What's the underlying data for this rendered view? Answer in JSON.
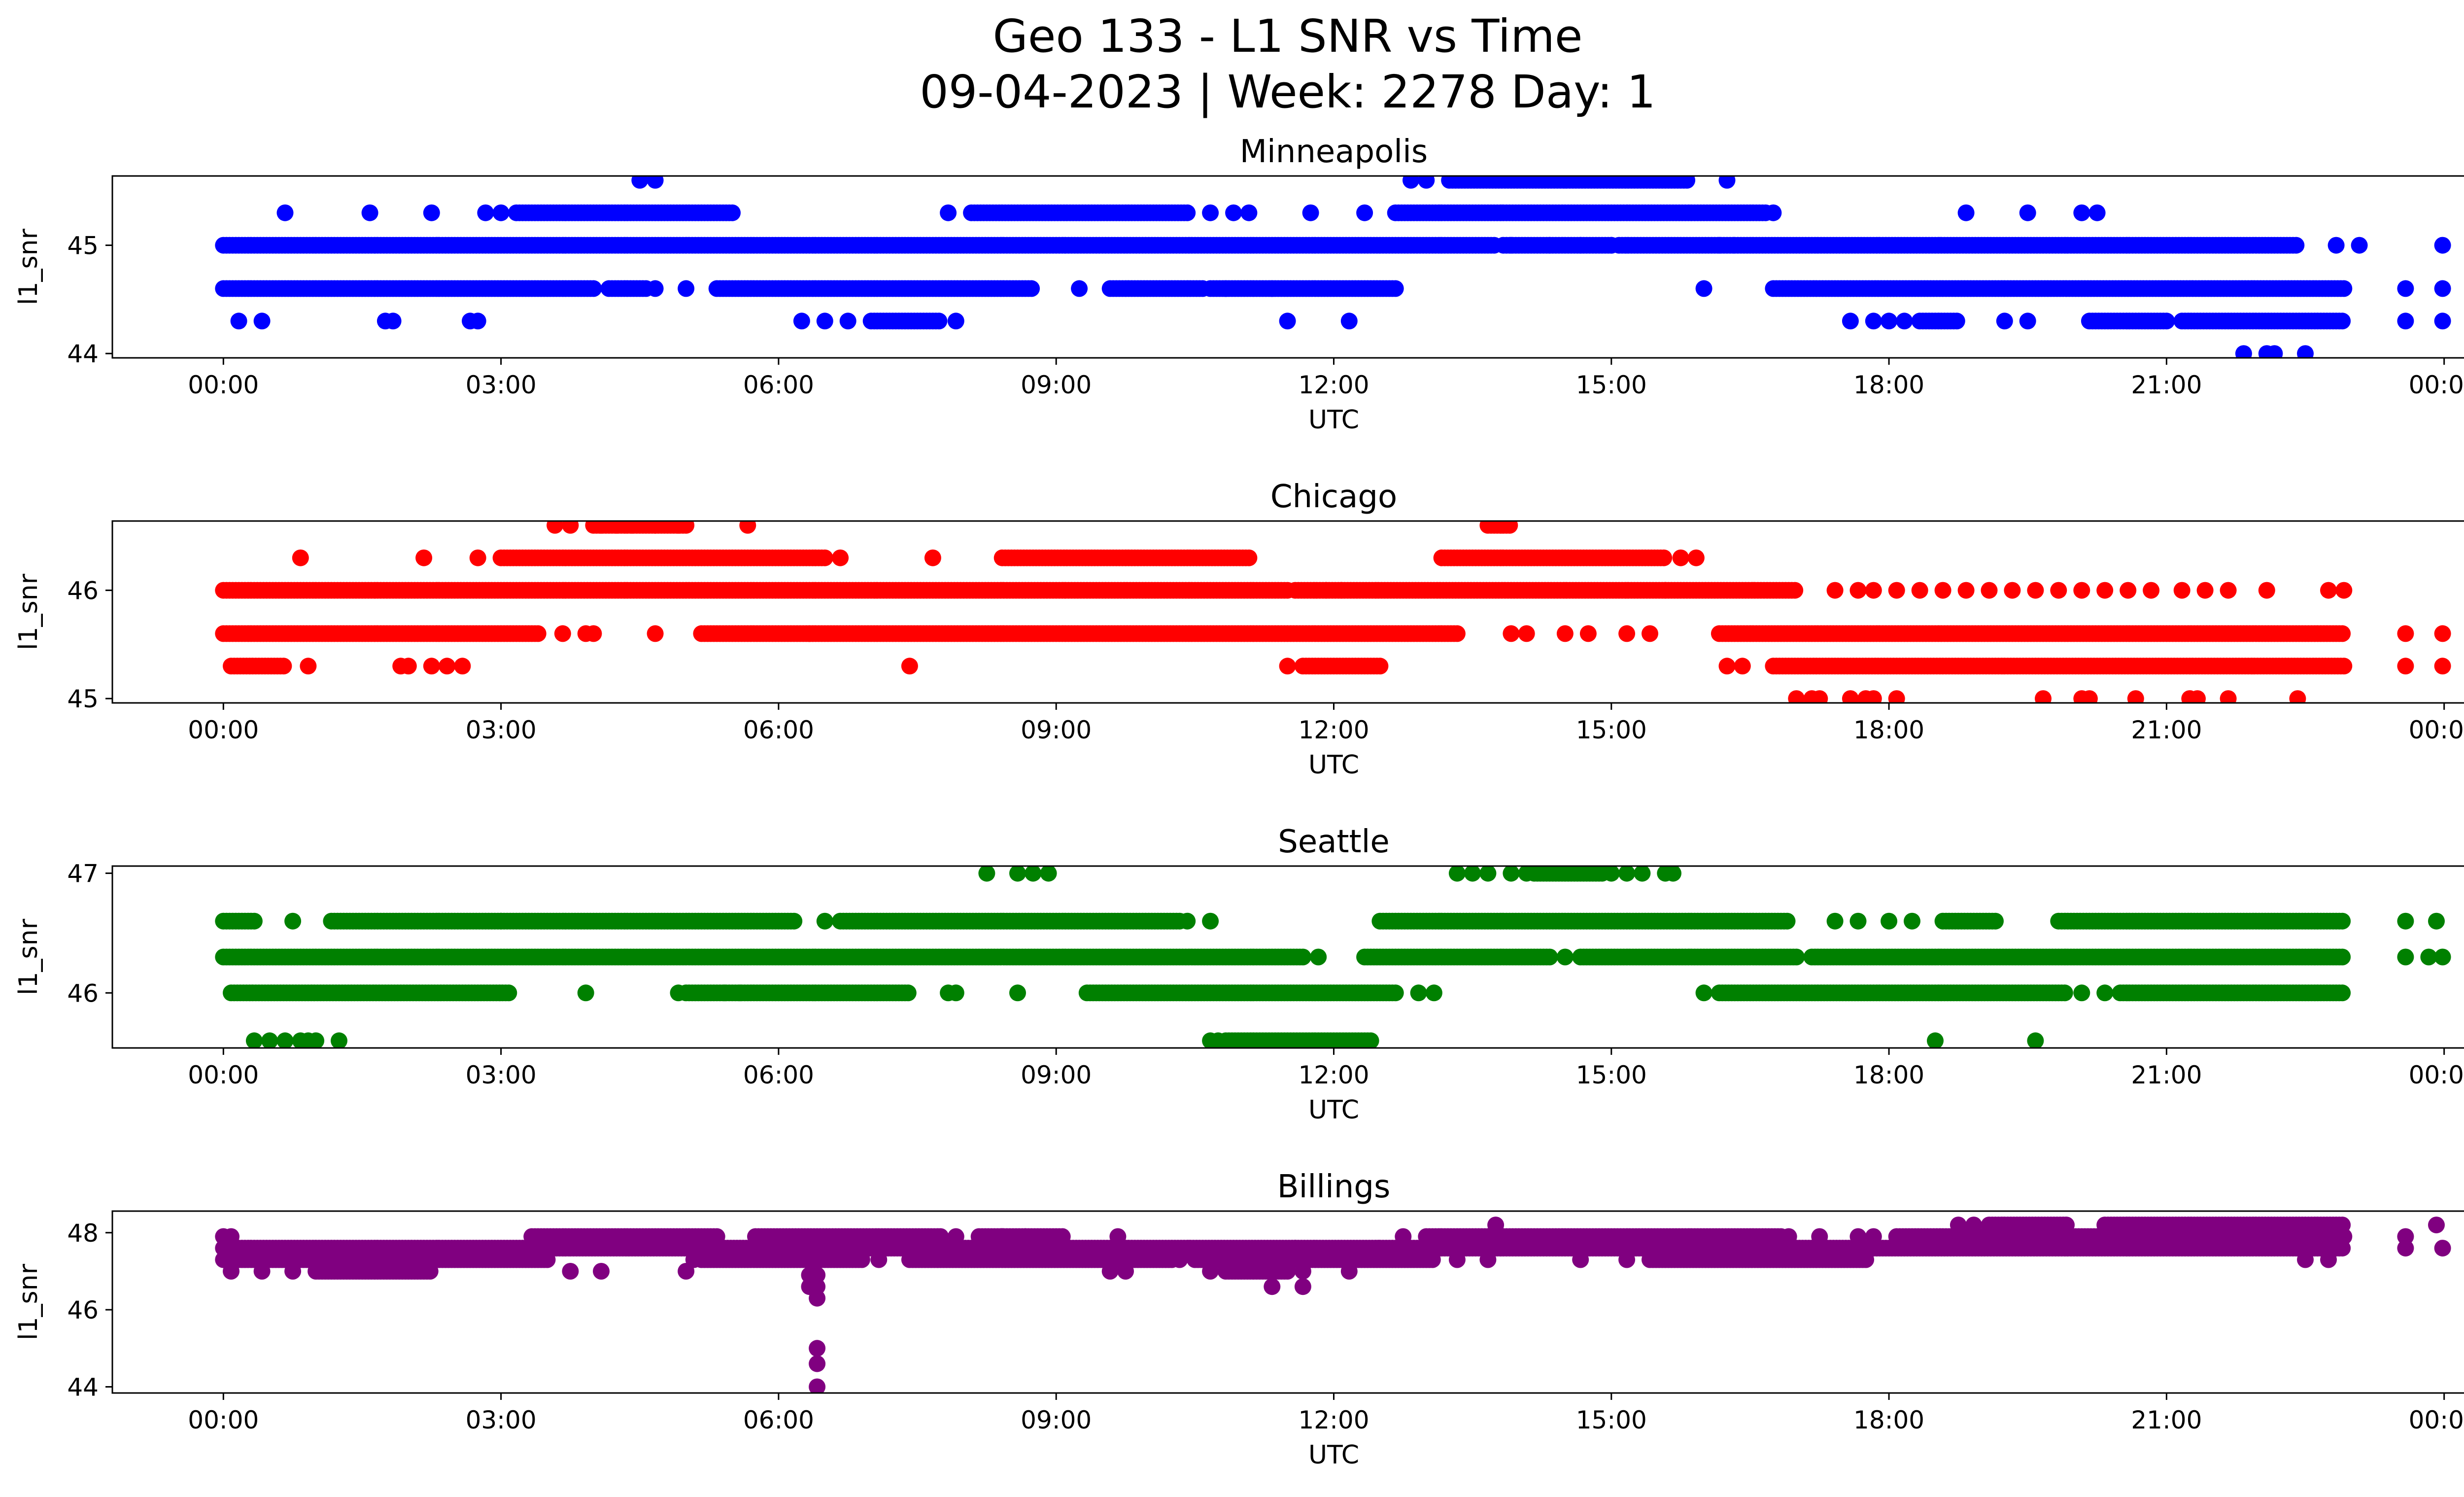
{
  "figure": {
    "title_line1": "Geo 133 - L1 SNR vs Time",
    "title_line2": "09-04-2023 | Week: 2278 Day: 1"
  },
  "chart_data": [
    {
      "type": "scatter",
      "title": "Minneapolis",
      "xlabel": "UTC",
      "ylabel": "l1_snr",
      "color": "#0000ff",
      "xlim": [
        "00:00",
        "24:00"
      ],
      "ylim": [
        43.96,
        45.64
      ],
      "xticks": [
        "00:00",
        "03:00",
        "06:00",
        "09:00",
        "12:00",
        "15:00",
        "18:00",
        "21:00",
        "00:00"
      ],
      "yticks": [
        44,
        45
      ],
      "grid": false,
      "series": [
        {
          "y": 45.0,
          "x_ranges": [
            [
              "00:00",
              "13:45"
            ],
            [
              "13:50",
              "15:00"
            ],
            [
              "15:05",
              "16:20"
            ],
            [
              "16:20",
              "22:25"
            ]
          ],
          "x_points": [
            "13:55",
            "14:20",
            "14:40",
            "15:00",
            "16:10",
            "22:50",
            "23:05",
            "23:59"
          ]
        },
        {
          "y": 44.6,
          "x_ranges": [
            [
              "00:00",
              "04:00"
            ],
            [
              "04:10",
              "04:35"
            ],
            [
              "05:20",
              "08:45"
            ],
            [
              "09:35",
              "10:35"
            ],
            [
              "10:40",
              "12:40"
            ],
            [
              "16:45",
              "22:55"
            ]
          ],
          "x_points": [
            "04:40",
            "05:00",
            "09:15",
            "10:50",
            "11:20",
            "16:00",
            "23:35",
            "23:59"
          ]
        },
        {
          "y": 44.3,
          "x_ranges": [
            [
              "07:00",
              "07:45"
            ],
            [
              "18:20",
              "18:45"
            ],
            [
              "20:10",
              "21:00"
            ],
            [
              "21:10",
              "22:55"
            ]
          ],
          "x_points": [
            "00:10",
            "00:25",
            "01:45",
            "01:50",
            "02:40",
            "02:45",
            "06:15",
            "06:30",
            "06:45",
            "07:55",
            "11:30",
            "12:10",
            "17:35",
            "17:50",
            "18:00",
            "18:10",
            "19:15",
            "19:30",
            "23:35",
            "23:59"
          ]
        },
        {
          "y": 45.3,
          "x_ranges": [
            [
              "03:10",
              "05:30"
            ],
            [
              "08:05",
              "10:25"
            ],
            [
              "12:40",
              "16:40"
            ]
          ],
          "x_points": [
            "00:40",
            "01:35",
            "02:15",
            "02:50",
            "03:00",
            "07:50",
            "10:40",
            "10:55",
            "11:05",
            "11:45",
            "12:20",
            "16:45",
            "18:50",
            "19:30",
            "20:05",
            "20:15"
          ]
        },
        {
          "y": 45.6,
          "x_ranges": [
            [
              "13:15",
              "15:50"
            ]
          ],
          "x_points": [
            "04:30",
            "04:40",
            "12:50",
            "13:00",
            "16:15"
          ]
        },
        {
          "y": 44.0,
          "x_ranges": [],
          "x_points": [
            "21:50",
            "22:05",
            "22:10",
            "22:30"
          ]
        }
      ]
    },
    {
      "type": "scatter",
      "title": "Chicago",
      "xlabel": "UTC",
      "ylabel": "l1_snr",
      "color": "#ff0000",
      "xlim": [
        "00:00",
        "24:00"
      ],
      "ylim": [
        44.96,
        46.64
      ],
      "xticks": [
        "00:00",
        "03:00",
        "06:00",
        "09:00",
        "12:00",
        "15:00",
        "18:00",
        "21:00",
        "00:00"
      ],
      "yticks": [
        45,
        46
      ],
      "grid": false,
      "series": [
        {
          "y": 46.0,
          "x_ranges": [
            [
              "00:00",
              "11:30"
            ],
            [
              "11:35",
              "15:35"
            ],
            [
              "15:35",
              "17:00"
            ]
          ],
          "x_points": [
            "11:55",
            "12:05",
            "17:25",
            "17:40",
            "17:50",
            "18:05",
            "18:20",
            "18:35",
            "18:50",
            "19:05",
            "19:20",
            "19:35",
            "19:50",
            "20:05",
            "20:20",
            "20:35",
            "20:50",
            "21:10",
            "21:25",
            "21:40",
            "22:05",
            "22:45",
            "22:55"
          ]
        },
        {
          "y": 45.6,
          "x_ranges": [
            [
              "00:00",
              "03:25"
            ],
            [
              "05:10",
              "13:20"
            ],
            [
              "16:10",
              "22:55"
            ]
          ],
          "x_points": [
            "03:40",
            "03:55",
            "04:00",
            "04:40",
            "06:20",
            "13:55",
            "14:05",
            "14:30",
            "14:45",
            "15:10",
            "15:25",
            "23:35",
            "23:59"
          ]
        },
        {
          "y": 45.3,
          "x_ranges": [
            [
              "00:05",
              "00:40"
            ],
            [
              "11:40",
              "12:30"
            ],
            [
              "16:45",
              "22:55"
            ]
          ],
          "x_points": [
            "00:55",
            "01:55",
            "02:00",
            "02:15",
            "02:25",
            "02:35",
            "07:25",
            "11:30",
            "16:15",
            "16:25",
            "23:35",
            "23:59"
          ]
        },
        {
          "y": 46.3,
          "x_ranges": [
            [
              "03:00",
              "06:30"
            ],
            [
              "08:25",
              "11:05"
            ],
            [
              "13:10",
              "15:35"
            ]
          ],
          "x_points": [
            "00:50",
            "02:10",
            "02:45",
            "06:40",
            "07:40",
            "15:45",
            "15:55"
          ]
        },
        {
          "y": 46.6,
          "x_ranges": [
            [
              "04:00",
              "05:00"
            ],
            [
              "13:40",
              "13:55"
            ]
          ],
          "x_points": [
            "03:35",
            "03:45",
            "04:05",
            "04:15",
            "04:25",
            "04:40",
            "04:55",
            "05:40"
          ]
        },
        {
          "y": 45.0,
          "x_ranges": [],
          "x_points": [
            "17:00",
            "17:10",
            "17:15",
            "17:35",
            "17:45",
            "17:50",
            "18:05",
            "19:40",
            "20:05",
            "20:10",
            "20:40",
            "21:15",
            "21:20",
            "21:40",
            "22:25"
          ]
        }
      ]
    },
    {
      "type": "scatter",
      "title": "Seattle",
      "xlabel": "UTC",
      "ylabel": "l1_snr",
      "color": "#008000",
      "xlim": [
        "00:00",
        "24:00"
      ],
      "ylim": [
        45.54,
        47.06
      ],
      "xticks": [
        "00:00",
        "03:00",
        "06:00",
        "09:00",
        "12:00",
        "15:00",
        "18:00",
        "21:00",
        "00:00"
      ],
      "yticks": [
        46,
        47
      ],
      "grid": false,
      "series": [
        {
          "y": 46.3,
          "x_ranges": [
            [
              "00:00",
              "11:40"
            ],
            [
              "12:20",
              "14:20"
            ],
            [
              "14:40",
              "17:00"
            ],
            [
              "17:10",
              "22:55"
            ]
          ],
          "x_points": [
            "11:50",
            "14:30",
            "23:35",
            "23:50",
            "23:59"
          ]
        },
        {
          "y": 46.0,
          "x_ranges": [
            [
              "00:05",
              "03:05"
            ],
            [
              "05:00",
              "07:25"
            ],
            [
              "09:20",
              "12:40"
            ],
            [
              "16:10",
              "19:55"
            ],
            [
              "20:30",
              "22:55"
            ]
          ],
          "x_points": [
            "03:55",
            "04:55",
            "05:25",
            "05:35",
            "07:50",
            "07:55",
            "08:35",
            "12:55",
            "13:05",
            "16:00",
            "20:05",
            "20:20"
          ]
        },
        {
          "y": 46.6,
          "x_ranges": [
            [
              "00:00",
              "00:20"
            ],
            [
              "01:10",
              "03:00"
            ],
            [
              "03:00",
              "06:10"
            ],
            [
              "06:40",
              "10:20"
            ],
            [
              "12:30",
              "16:55"
            ],
            [
              "18:35",
              "19:10"
            ],
            [
              "19:50",
              "22:55"
            ]
          ],
          "x_points": [
            "00:45",
            "06:30",
            "10:25",
            "10:40",
            "17:25",
            "17:40",
            "18:00",
            "18:15",
            "23:35",
            "23:55"
          ]
        },
        {
          "y": 47.0,
          "x_ranges": [
            [
              "14:10",
              "14:55"
            ]
          ],
          "x_points": [
            "08:15",
            "08:35",
            "08:45",
            "08:55",
            "13:20",
            "13:30",
            "13:40",
            "13:55",
            "14:05",
            "15:00",
            "15:10",
            "15:20",
            "15:35",
            "15:40"
          ]
        },
        {
          "y": 45.6,
          "x_ranges": [
            [
              "10:50",
              "12:25"
            ]
          ],
          "x_points": [
            "00:20",
            "00:30",
            "00:40",
            "00:50",
            "00:55",
            "01:00",
            "01:15",
            "10:40",
            "10:45",
            "18:30",
            "19:35"
          ]
        }
      ]
    },
    {
      "type": "scatter",
      "title": "Billings",
      "xlabel": "UTC",
      "ylabel": "l1_snr",
      "color": "#800080",
      "xlim": [
        "00:00",
        "24:00"
      ],
      "ylim": [
        43.84,
        48.56
      ],
      "xticks": [
        "00:00",
        "03:00",
        "06:00",
        "09:00",
        "12:00",
        "15:00",
        "18:00",
        "21:00",
        "00:00"
      ],
      "yticks": [
        44,
        46,
        48
      ],
      "grid": false,
      "series": [
        {
          "y": 47.6,
          "x_ranges": [
            [
              "00:00",
              "03:45"
            ],
            [
              "03:45",
              "11:35"
            ],
            [
              "11:35",
              "12:30"
            ],
            [
              "12:30",
              "22:55"
            ]
          ],
          "x_points": [
            "23:35",
            "23:59"
          ]
        },
        {
          "y": 47.3,
          "x_ranges": [
            [
              "00:00",
              "03:30"
            ],
            [
              "05:10",
              "06:55"
            ],
            [
              "07:25",
              "10:15"
            ],
            [
              "10:30",
              "13:05"
            ],
            [
              "15:25",
              "17:45"
            ]
          ],
          "x_points": [
            "05:05",
            "07:05",
            "10:20",
            "13:20",
            "13:40",
            "14:40",
            "15:10",
            "22:30",
            "22:45"
          ]
        },
        {
          "y": 47.0,
          "x_ranges": [
            [
              "01:00",
              "02:15"
            ],
            [
              "10:50",
              "11:30"
            ]
          ],
          "x_points": [
            "00:05",
            "00:25",
            "00:45",
            "03:45",
            "04:05",
            "05:00",
            "09:35",
            "09:45",
            "10:40",
            "11:40",
            "12:10"
          ]
        },
        {
          "y": 47.9,
          "x_ranges": [
            [
              "03:20",
              "05:20"
            ],
            [
              "05:45",
              "07:45"
            ],
            [
              "08:10",
              "09:05"
            ],
            [
              "13:00",
              "16:50"
            ],
            [
              "18:05",
              "22:55"
            ]
          ],
          "x_points": [
            "00:00",
            "00:05",
            "07:55",
            "08:25",
            "08:40",
            "09:40",
            "12:45",
            "16:55",
            "17:15",
            "17:40",
            "17:50",
            "23:35"
          ]
        },
        {
          "y": 48.2,
          "x_ranges": [
            [
              "19:05",
              "19:55"
            ],
            [
              "20:20",
              "22:55"
            ]
          ],
          "x_points": [
            "13:45",
            "18:45",
            "18:55",
            "23:55"
          ]
        },
        {
          "y": 46.9,
          "x_ranges": [],
          "x_points": [
            "06:20",
            "06:25"
          ]
        },
        {
          "y": 46.6,
          "x_ranges": [],
          "x_points": [
            "06:20",
            "06:25",
            "11:20",
            "11:40"
          ]
        },
        {
          "y": 46.3,
          "x_ranges": [],
          "x_points": [
            "06:25"
          ]
        },
        {
          "y": 45.0,
          "x_ranges": [],
          "x_points": [
            "06:25"
          ]
        },
        {
          "y": 44.6,
          "x_ranges": [],
          "x_points": [
            "06:25"
          ]
        },
        {
          "y": 44.0,
          "x_ranges": [],
          "x_points": [
            "06:25"
          ]
        }
      ]
    }
  ]
}
